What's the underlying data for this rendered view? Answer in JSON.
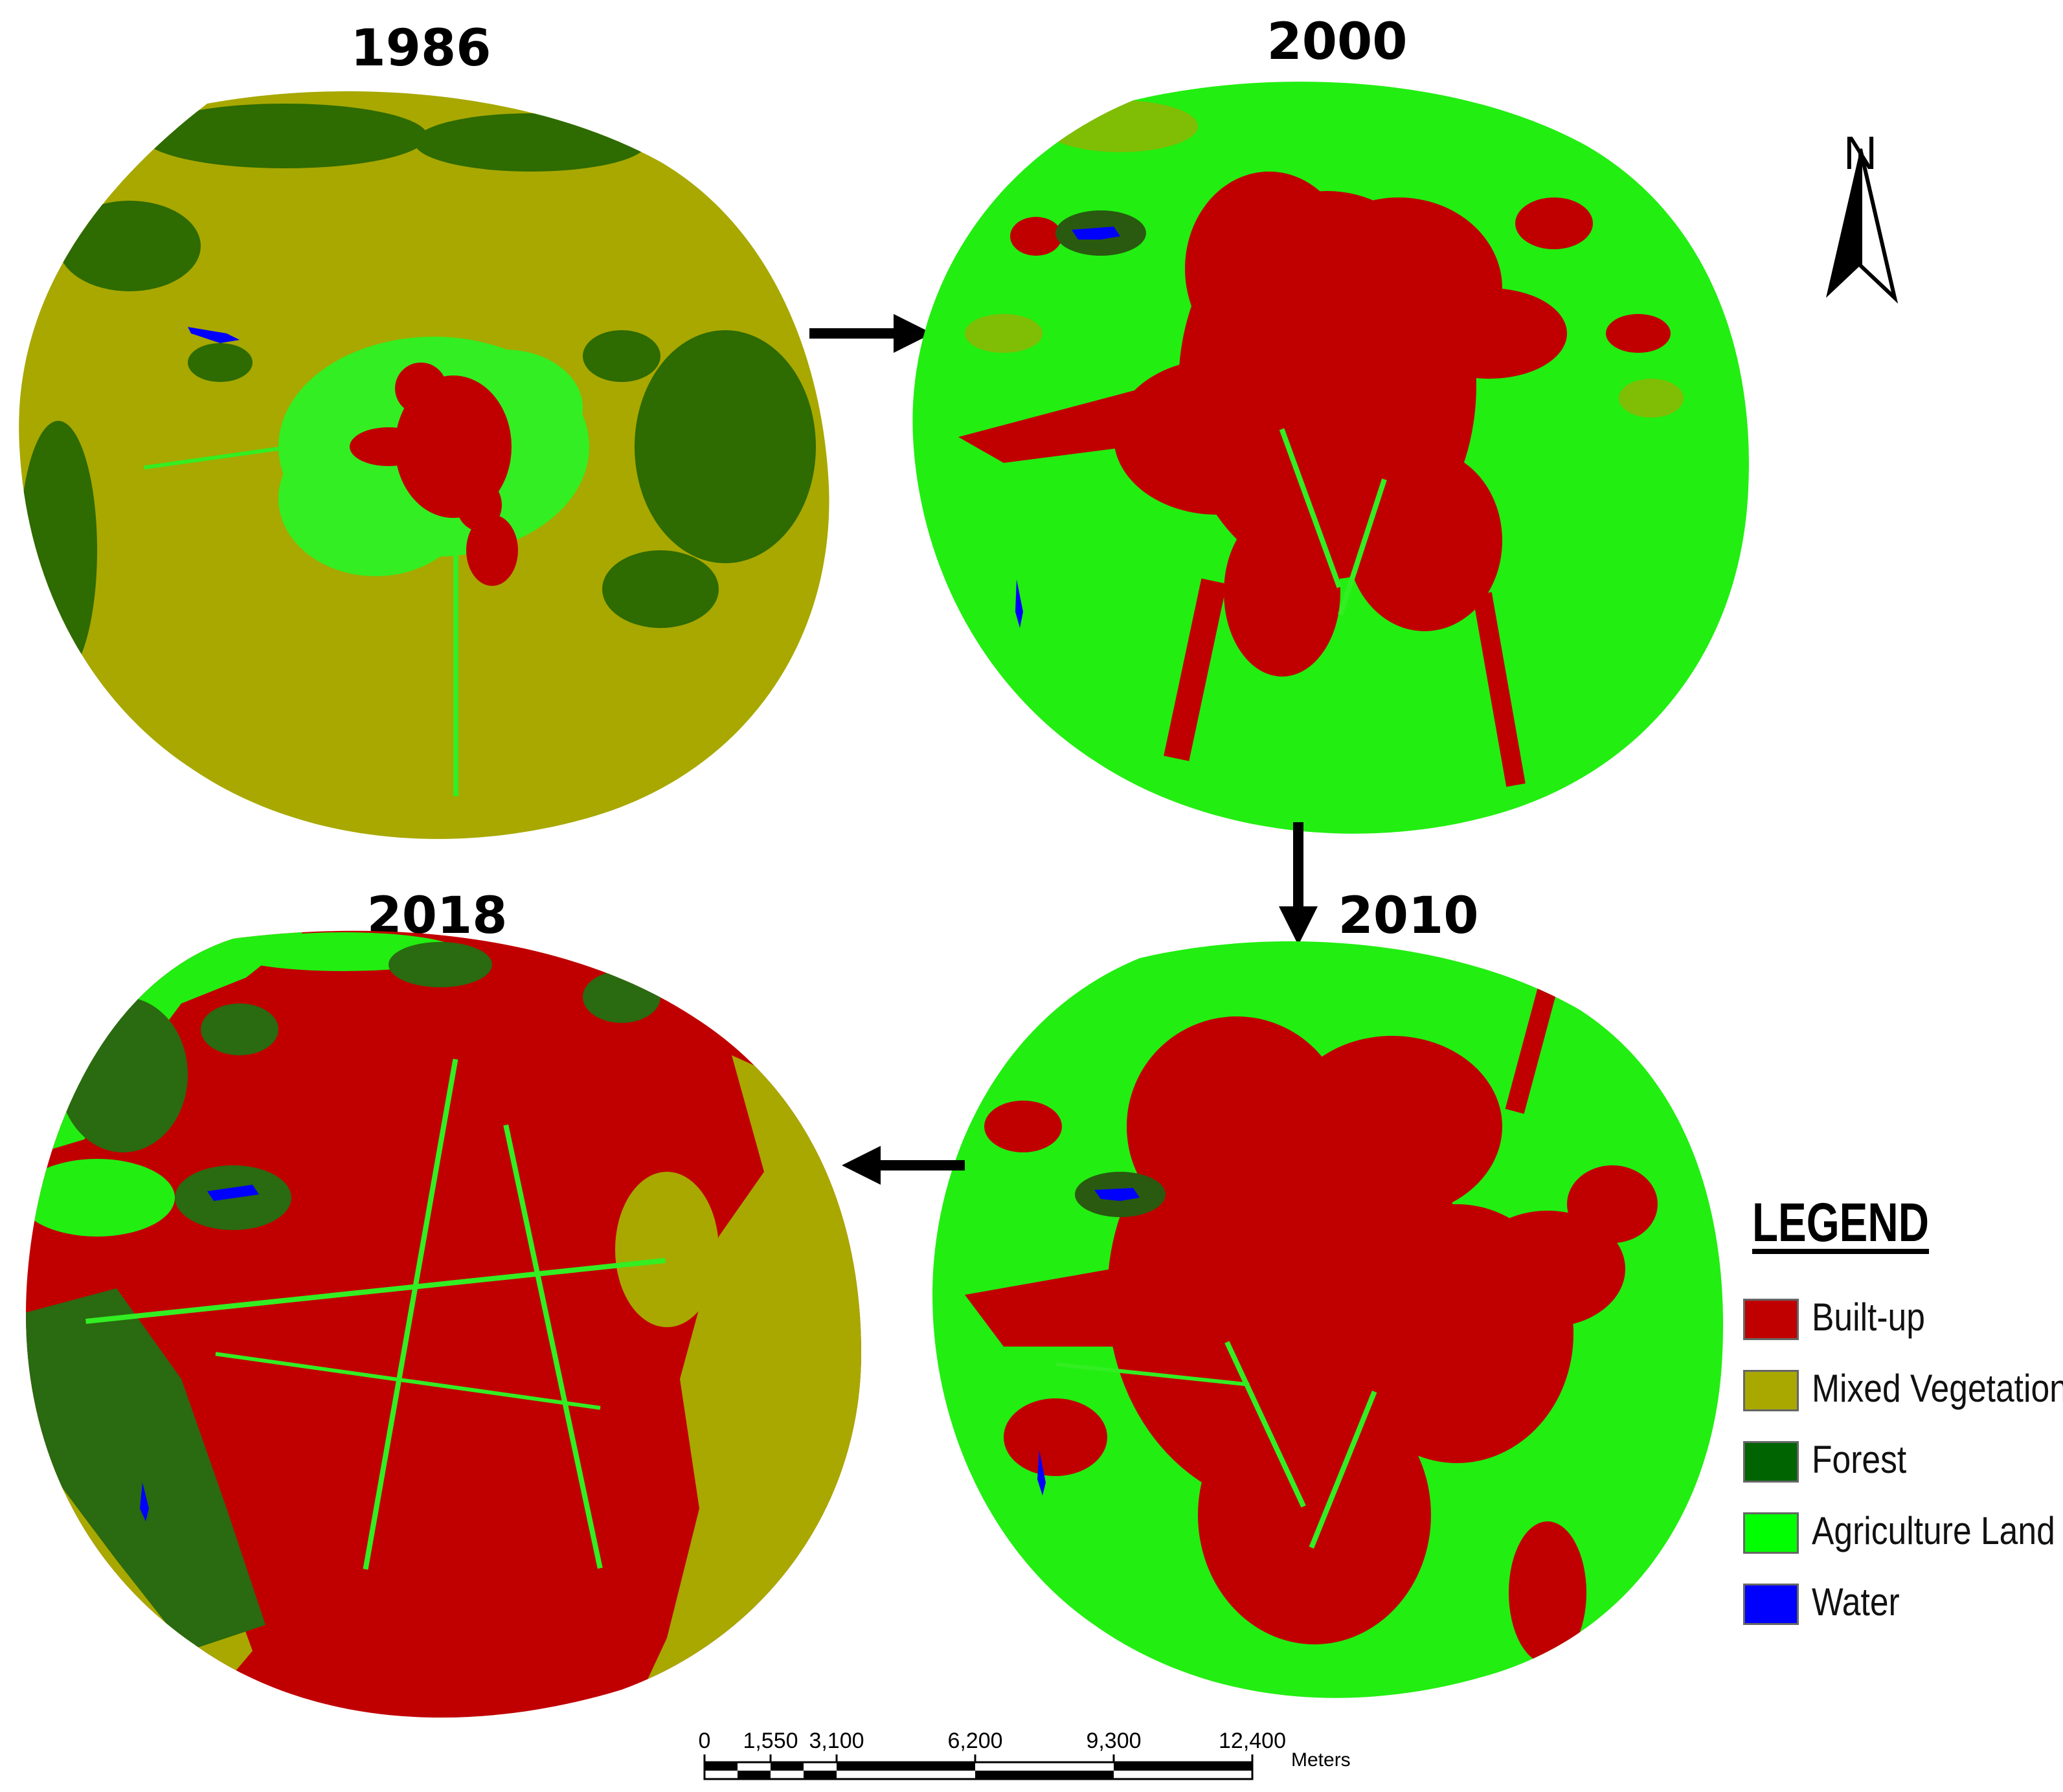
{
  "maps": [
    {
      "year": "1986"
    },
    {
      "year": "2000"
    },
    {
      "year": "2010"
    },
    {
      "year": "2018"
    }
  ],
  "north_arrow": {
    "letter": "N"
  },
  "legend": {
    "title": "LEGEND",
    "items": [
      {
        "label": "Built-up",
        "color": "#c00000"
      },
      {
        "label": "Mixed Vegetation",
        "color": "#a8a800"
      },
      {
        "label": "Forest",
        "color": "#006400"
      },
      {
        "label": "Agriculture Land",
        "color": "#00ff00"
      },
      {
        "label": "Water",
        "color": "#0000ff"
      }
    ]
  },
  "scale_bar": {
    "ticks": [
      "0",
      "1,550",
      "3,100",
      "6,200",
      "9,300",
      "12,400"
    ],
    "units": "Meters"
  }
}
